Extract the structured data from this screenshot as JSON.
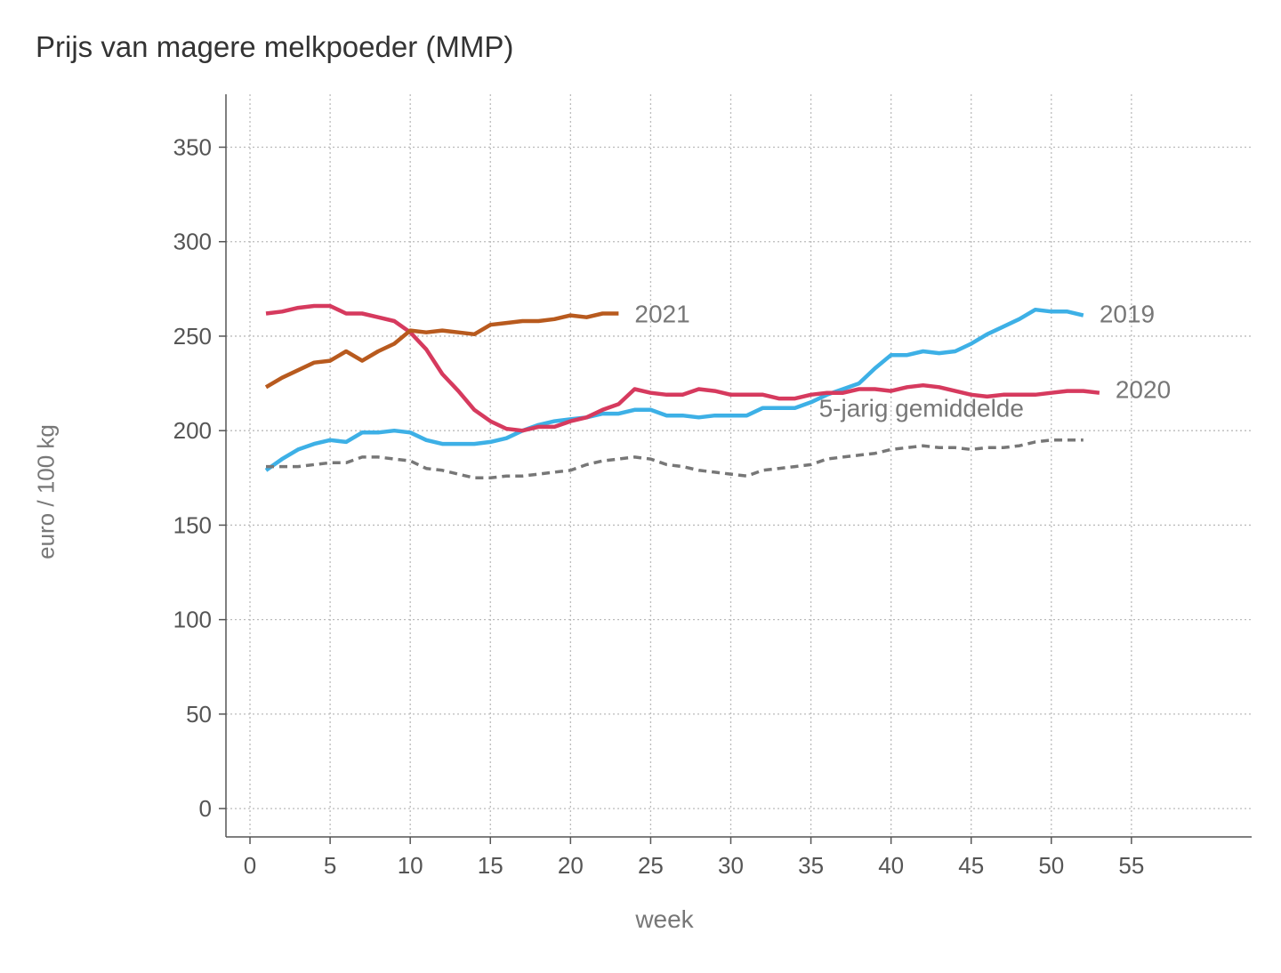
{
  "chart_data": {
    "type": "line",
    "title": "Prijs van magere melkpoeder (MMP)",
    "xlabel": "week",
    "ylabel": "euro / 100 kg",
    "xlim": [
      -1.5,
      62.5
    ],
    "ylim": [
      -15,
      378
    ],
    "xticks": [
      0,
      5,
      10,
      15,
      20,
      25,
      30,
      35,
      40,
      45,
      50,
      55
    ],
    "yticks": [
      0,
      50,
      100,
      150,
      200,
      250,
      300,
      350
    ],
    "grid": true,
    "legend": "none",
    "series": [
      {
        "name": "2019",
        "color": "#3db0e6",
        "dash": false,
        "x": [
          1,
          2,
          3,
          4,
          5,
          6,
          7,
          8,
          9,
          10,
          11,
          12,
          13,
          14,
          15,
          16,
          17,
          18,
          19,
          20,
          21,
          22,
          23,
          24,
          25,
          26,
          27,
          28,
          29,
          30,
          31,
          32,
          33,
          34,
          35,
          36,
          37,
          38,
          39,
          40,
          41,
          42,
          43,
          44,
          45,
          46,
          47,
          48,
          49,
          50,
          51,
          52
        ],
        "values": [
          179,
          185,
          190,
          193,
          195,
          194,
          199,
          199,
          200,
          199,
          195,
          193,
          193,
          193,
          194,
          196,
          200,
          203,
          205,
          206,
          207,
          209,
          209,
          211,
          211,
          208,
          208,
          207,
          208,
          208,
          208,
          212,
          212,
          212,
          215,
          219,
          222,
          225,
          233,
          240,
          240,
          242,
          241,
          242,
          246,
          251,
          255,
          259,
          264,
          263,
          263,
          261
        ]
      },
      {
        "name": "2020",
        "color": "#d63a5e",
        "dash": false,
        "x": [
          1,
          2,
          3,
          4,
          5,
          6,
          7,
          8,
          9,
          10,
          11,
          12,
          13,
          14,
          15,
          16,
          17,
          18,
          19,
          20,
          21,
          22,
          23,
          24,
          25,
          26,
          27,
          28,
          29,
          30,
          31,
          32,
          33,
          34,
          35,
          36,
          37,
          38,
          39,
          40,
          41,
          42,
          43,
          44,
          45,
          46,
          47,
          48,
          49,
          50,
          51,
          52,
          53
        ],
        "values": [
          262,
          263,
          265,
          266,
          266,
          262,
          262,
          260,
          258,
          252,
          243,
          230,
          221,
          211,
          205,
          201,
          200,
          202,
          202,
          205,
          207,
          211,
          214,
          222,
          220,
          219,
          219,
          222,
          221,
          219,
          219,
          219,
          217,
          217,
          219,
          220,
          220,
          222,
          222,
          221,
          223,
          224,
          223,
          221,
          219,
          218,
          219,
          219,
          219,
          220,
          221,
          221,
          220
        ]
      },
      {
        "name": "2021",
        "color": "#b85a1e",
        "dash": false,
        "x": [
          1,
          2,
          3,
          4,
          5,
          6,
          7,
          8,
          9,
          10,
          11,
          12,
          13,
          14,
          15,
          16,
          17,
          18,
          19,
          20,
          21,
          22,
          23
        ],
        "values": [
          223,
          228,
          232,
          236,
          237,
          242,
          237,
          242,
          246,
          253,
          252,
          253,
          252,
          251,
          256,
          257,
          258,
          258,
          259,
          261,
          260,
          262,
          262
        ]
      },
      {
        "name": "5-jarig gemiddelde",
        "color": "#777777",
        "dash": true,
        "x": [
          1,
          2,
          3,
          4,
          5,
          6,
          7,
          8,
          9,
          10,
          11,
          12,
          13,
          14,
          15,
          16,
          17,
          18,
          19,
          20,
          21,
          22,
          23,
          24,
          25,
          26,
          27,
          28,
          29,
          30,
          31,
          32,
          33,
          34,
          35,
          36,
          37,
          38,
          39,
          40,
          41,
          42,
          43,
          44,
          45,
          46,
          47,
          48,
          49,
          50,
          51,
          52
        ],
        "values": [
          181,
          181,
          181,
          182,
          183,
          183,
          186,
          186,
          185,
          184,
          180,
          179,
          177,
          175,
          175,
          176,
          176,
          177,
          178,
          179,
          182,
          184,
          185,
          186,
          185,
          182,
          181,
          179,
          178,
          177,
          176,
          179,
          180,
          181,
          182,
          185,
          186,
          187,
          188,
          190,
          191,
          192,
          191,
          191,
          190,
          191,
          191,
          192,
          194,
          195,
          195,
          195
        ]
      }
    ],
    "annotations": [
      {
        "text": "2021",
        "x": 24,
        "y": 262
      },
      {
        "text": "2019",
        "x": 53,
        "y": 262
      },
      {
        "text": "2020",
        "x": 54,
        "y": 222
      },
      {
        "text": "5-jarig gemiddelde",
        "x": 35.5,
        "y": 212
      }
    ]
  }
}
